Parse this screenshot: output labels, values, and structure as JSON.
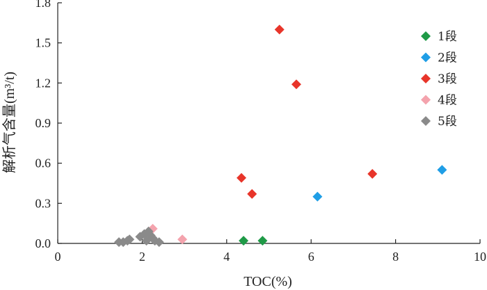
{
  "chart_data": {
    "type": "scatter",
    "title": "",
    "xlabel": "TOC(%)",
    "ylabel": "解析气含量(m³/t)",
    "xlim": [
      0,
      10
    ],
    "ylim": [
      0,
      1.8
    ],
    "x_ticks": [
      "0",
      "2",
      "4",
      "6",
      "8",
      "10"
    ],
    "y_ticks": [
      "0.0",
      "0.3",
      "0.6",
      "0.9",
      "1.2",
      "1.5",
      "1.8"
    ],
    "grid": false,
    "legend_position": "top-right",
    "marker": "diamond",
    "series": [
      {
        "name": "1段",
        "color": "#1f9a47",
        "points": [
          [
            4.4,
            0.02
          ],
          [
            4.85,
            0.02
          ]
        ]
      },
      {
        "name": "2段",
        "color": "#1f9ee6",
        "points": [
          [
            6.15,
            0.35
          ],
          [
            9.1,
            0.55
          ]
        ]
      },
      {
        "name": "3段",
        "color": "#e8352a",
        "points": [
          [
            5.25,
            1.6
          ],
          [
            5.65,
            1.19
          ],
          [
            7.45,
            0.52
          ],
          [
            4.35,
            0.49
          ],
          [
            4.6,
            0.37
          ]
        ]
      },
      {
        "name": "4段",
        "color": "#f4a3ad",
        "points": [
          [
            2.25,
            0.11
          ],
          [
            2.95,
            0.03
          ]
        ]
      },
      {
        "name": "5段",
        "color": "#8a8a8a",
        "points": [
          [
            1.45,
            0.01
          ],
          [
            1.55,
            0.01
          ],
          [
            1.7,
            0.03
          ],
          [
            1.95,
            0.05
          ],
          [
            2.05,
            0.07
          ],
          [
            2.15,
            0.09
          ],
          [
            2.2,
            0.06
          ],
          [
            2.25,
            0.04
          ],
          [
            2.3,
            0.02
          ],
          [
            2.4,
            0.01
          ],
          [
            1.65,
            0.02
          ],
          [
            2.1,
            0.02
          ]
        ]
      }
    ]
  }
}
